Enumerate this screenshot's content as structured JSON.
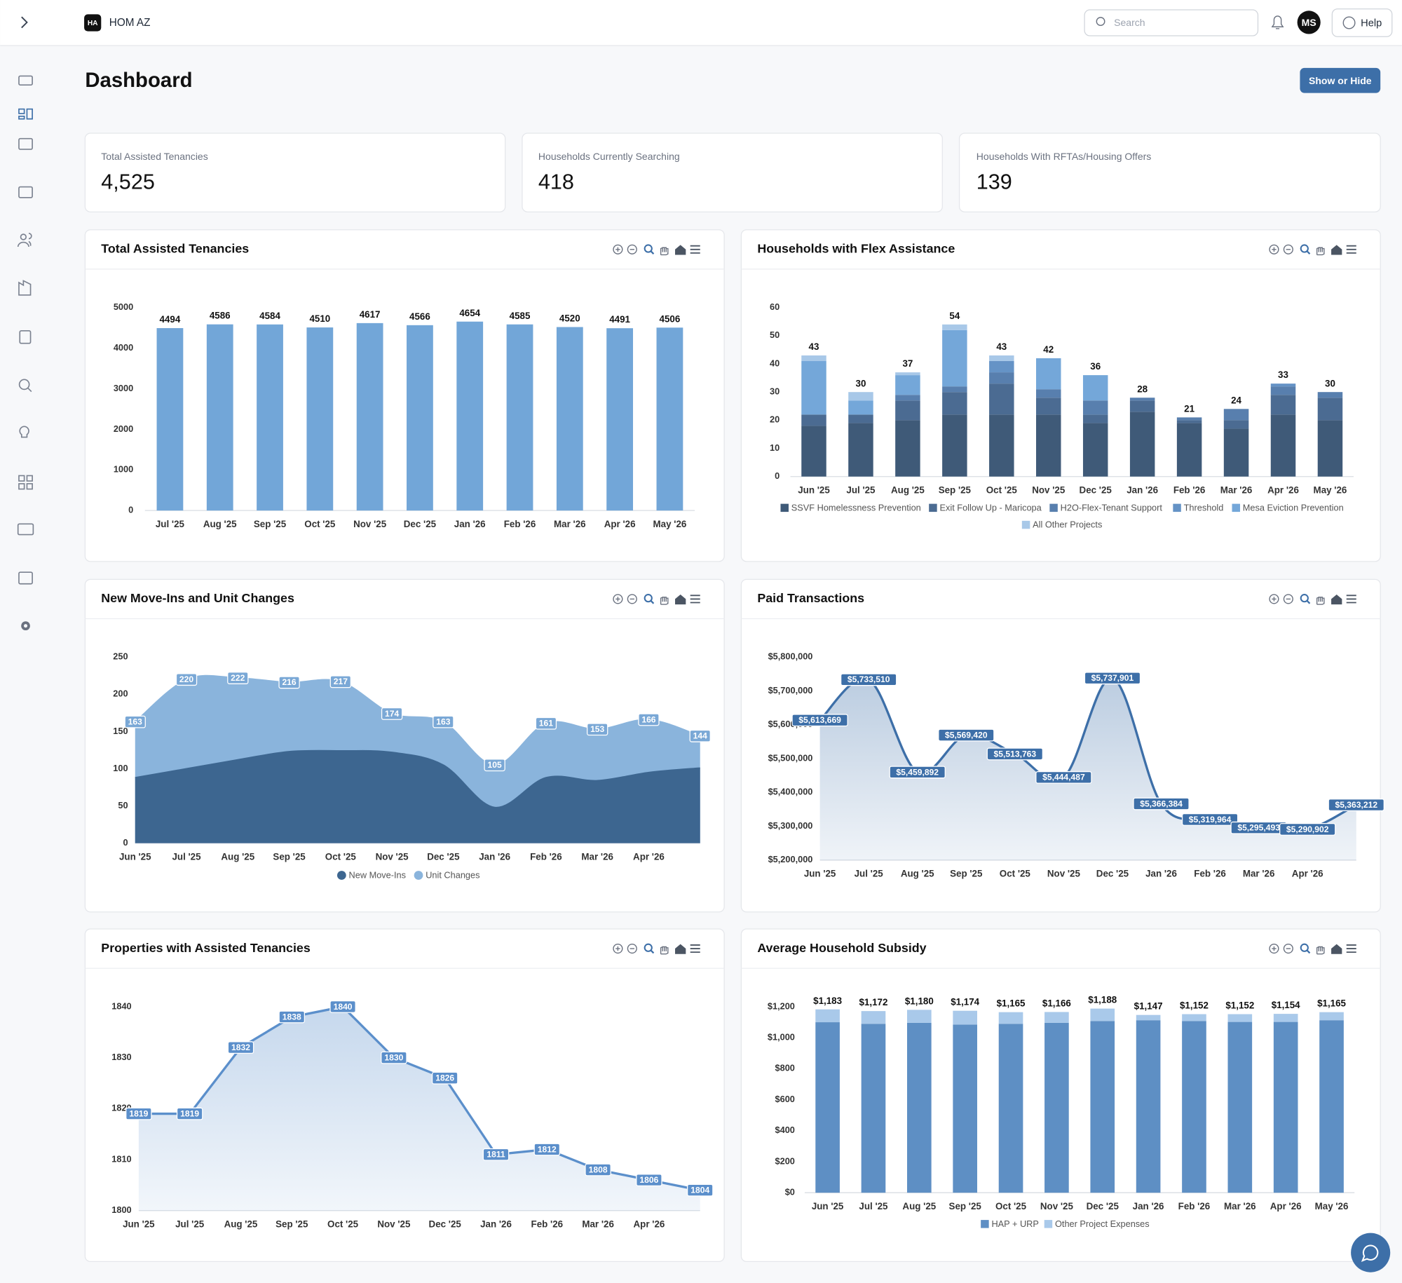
{
  "header": {
    "badge": "HA",
    "brand": "HOM AZ",
    "search_placeholder": "Search",
    "user_initials": "MS",
    "help": "Help"
  },
  "page_title": "Dashboard",
  "show_hide": "Show or Hide",
  "kpis": [
    {
      "label": "Total Assisted Tenancies",
      "value": "4,525"
    },
    {
      "label": "Households Currently Searching",
      "value": "418"
    },
    {
      "label": "Households With RFTAs/Housing Offers",
      "value": "139"
    }
  ],
  "chart_data": [
    {
      "type": "bar",
      "title": "Total Assisted Tenancies",
      "categories": [
        "Jul '25",
        "Aug '25",
        "Sep '25",
        "Oct '25",
        "Nov '25",
        "Dec '25",
        "Jan '26",
        "Feb '26",
        "Mar '26",
        "Apr '26",
        "May '26"
      ],
      "values": [
        4494,
        4586,
        4584,
        4510,
        4617,
        4566,
        4654,
        4585,
        4520,
        4491,
        4506
      ],
      "color": "#72a6d8",
      "ylim": [
        0,
        5000
      ],
      "yticks": [
        0,
        1000,
        2000,
        3000,
        4000,
        5000
      ],
      "grid": false
    },
    {
      "type": "bar",
      "stacked": true,
      "title": "Households with Flex Assistance",
      "categories": [
        "Jun '25",
        "Jul '25",
        "Aug '25",
        "Sep '25",
        "Oct '25",
        "Nov '25",
        "Dec '25",
        "Jan '26",
        "Feb '26",
        "Mar '26",
        "Apr '26",
        "May '26"
      ],
      "series": [
        {
          "name": "SSVF Homelessness Prevention",
          "color": "#3f5a78",
          "values": [
            18,
            19,
            20,
            22,
            22,
            22,
            19,
            23,
            19,
            17,
            22,
            20
          ]
        },
        {
          "name": "Exit Follow Up - Maricopa",
          "color": "#4b6b92",
          "values": [
            4,
            3,
            7,
            8,
            11,
            6,
            3,
            4,
            1,
            3,
            7,
            8
          ]
        },
        {
          "name": "H2O-Flex-Tenant Support",
          "color": "#587fae",
          "values": [
            0,
            0,
            2,
            2,
            4,
            3,
            5,
            1,
            1,
            4,
            3,
            2
          ]
        },
        {
          "name": "Threshold",
          "color": "#6593c6",
          "values": [
            0,
            0,
            0,
            0,
            4,
            0,
            0,
            0,
            0,
            0,
            1,
            0
          ]
        },
        {
          "name": "Mesa Eviction Prevention",
          "color": "#74a7d9",
          "values": [
            19,
            5,
            7,
            20,
            0,
            11,
            9,
            0,
            0,
            0,
            0,
            0
          ]
        },
        {
          "name": "All Other Projects",
          "color": "#a8c8e8",
          "values": [
            2,
            3,
            1,
            2,
            2,
            0,
            0,
            0,
            0,
            0,
            0,
            0
          ]
        }
      ],
      "totals": [
        43,
        30,
        37,
        54,
        43,
        42,
        36,
        28,
        21,
        24,
        33,
        30
      ],
      "ylim": [
        0,
        60
      ],
      "yticks": [
        0,
        10,
        20,
        30,
        40,
        50,
        60
      ],
      "grid": false,
      "legend": "bottom"
    },
    {
      "type": "area",
      "smooth": true,
      "title": "New Move-Ins and Unit Changes",
      "categories": [
        "Jun '25",
        "Jul '25",
        "Aug '25",
        "Sep '25",
        "Oct '25",
        "Nov '25",
        "Dec '25",
        "Jan '26",
        "Feb '26",
        "Mar '26",
        "Apr '26",
        null
      ],
      "series": [
        {
          "name": "New Move-Ins",
          "color": "#3d6690",
          "values": [
            88,
            100,
            112,
            123,
            124,
            122,
            105,
            48,
            88,
            84,
            95,
            101
          ]
        },
        {
          "name": "Unit Changes",
          "color": "#8ab4dc",
          "values": [
            163,
            220,
            222,
            216,
            217,
            174,
            163,
            105,
            161,
            153,
            166,
            144
          ],
          "data_labels": true
        }
      ],
      "ylim": [
        0,
        250
      ],
      "yticks": [
        0,
        50,
        100,
        150,
        200,
        250
      ],
      "grid": false,
      "legend": "bottom"
    },
    {
      "type": "area",
      "smooth": true,
      "title": "Paid Transactions",
      "categories": [
        "Jun '25",
        "Jul '25",
        "Aug '25",
        "Sep '25",
        "Oct '25",
        "Nov '25",
        "Dec '25",
        "Jan '26",
        "Feb '26",
        "Mar '26",
        "Apr '26",
        null
      ],
      "values": [
        5613669,
        5733510,
        5459892,
        5569420,
        5513763,
        5444487,
        5737901,
        5366384,
        5319964,
        5295493,
        5290902,
        5363212
      ],
      "value_labels": [
        "$5,613,669",
        "$5,733,510",
        "$5,459,892",
        "$5,569,420",
        "$5,513,763",
        "$5,444,487",
        "$5,737,901",
        "$5,366,384",
        "$5,319,964",
        "$5,295,493",
        "$5,290,902",
        "$5,363,212"
      ],
      "color": "#3d6fa8",
      "ylim": [
        5200000,
        5800000
      ],
      "yticks": [
        {
          "value": 5200000,
          "label": "$5,200,000"
        },
        {
          "value": 5300000,
          "label": "$5,300,000"
        },
        {
          "value": 5400000,
          "label": "$5,400,000"
        },
        {
          "value": 5500000,
          "label": "$5,500,000"
        },
        {
          "value": 5600000,
          "label": "$5,600,000"
        },
        {
          "value": 5700000,
          "label": "$5,700,000"
        },
        {
          "value": 5800000,
          "label": "$5,800,000"
        }
      ],
      "grid": false
    },
    {
      "type": "area",
      "smooth": false,
      "title": "Properties with Assisted Tenancies",
      "categories": [
        "Jun '25",
        "Jul '25",
        "Aug '25",
        "Sep '25",
        "Oct '25",
        "Nov '25",
        "Dec '25",
        "Jan '26",
        "Feb '26",
        "Mar '26",
        "Apr '26",
        null
      ],
      "values": [
        1819,
        1819,
        1832,
        1838,
        1840,
        1830,
        1826,
        1811,
        1812,
        1808,
        1806,
        1804
      ],
      "color": "#5b8fcb",
      "ylim": [
        1800,
        1840
      ],
      "yticks": [
        1800,
        1810,
        1820,
        1830,
        1840
      ],
      "grid": false
    },
    {
      "type": "bar",
      "stacked": true,
      "title": "Average Household Subsidy",
      "categories": [
        "Jun '25",
        "Jul '25",
        "Aug '25",
        "Sep '25",
        "Oct '25",
        "Nov '25",
        "Dec '25",
        "Jan '26",
        "Feb '26",
        "Mar '26",
        "Apr '26",
        "May '26"
      ],
      "series": [
        {
          "name": "HAP + URP",
          "color": "#5e8fc4",
          "values": [
            1100,
            1090,
            1096,
            1085,
            1090,
            1096,
            1108,
            1113,
            1108,
            1102,
            1102,
            1113
          ]
        },
        {
          "name": "Other Project Expenses",
          "color": "#a9c9ea",
          "values": [
            83,
            82,
            84,
            89,
            75,
            70,
            80,
            34,
            44,
            50,
            52,
            52
          ]
        }
      ],
      "totals": [
        1183,
        1172,
        1180,
        1174,
        1165,
        1166,
        1188,
        1147,
        1152,
        1152,
        1154,
        1165
      ],
      "total_labels": [
        "$1,183",
        "$1,172",
        "$1,180",
        "$1,174",
        "$1,165",
        "$1,166",
        "$1,188",
        "$1,147",
        "$1,152",
        "$1,152",
        "$1,154",
        "$1,165"
      ],
      "ylim": [
        0,
        1200
      ],
      "yticks": [
        {
          "value": 0,
          "label": "$0"
        },
        {
          "value": 200,
          "label": "$200"
        },
        {
          "value": 400,
          "label": "$400"
        },
        {
          "value": 600,
          "label": "$600"
        },
        {
          "value": 800,
          "label": "$800"
        },
        {
          "value": 1000,
          "label": "$1,000"
        },
        {
          "value": 1200,
          "label": "$1,200"
        }
      ],
      "grid": false,
      "legend": "bottom"
    }
  ]
}
